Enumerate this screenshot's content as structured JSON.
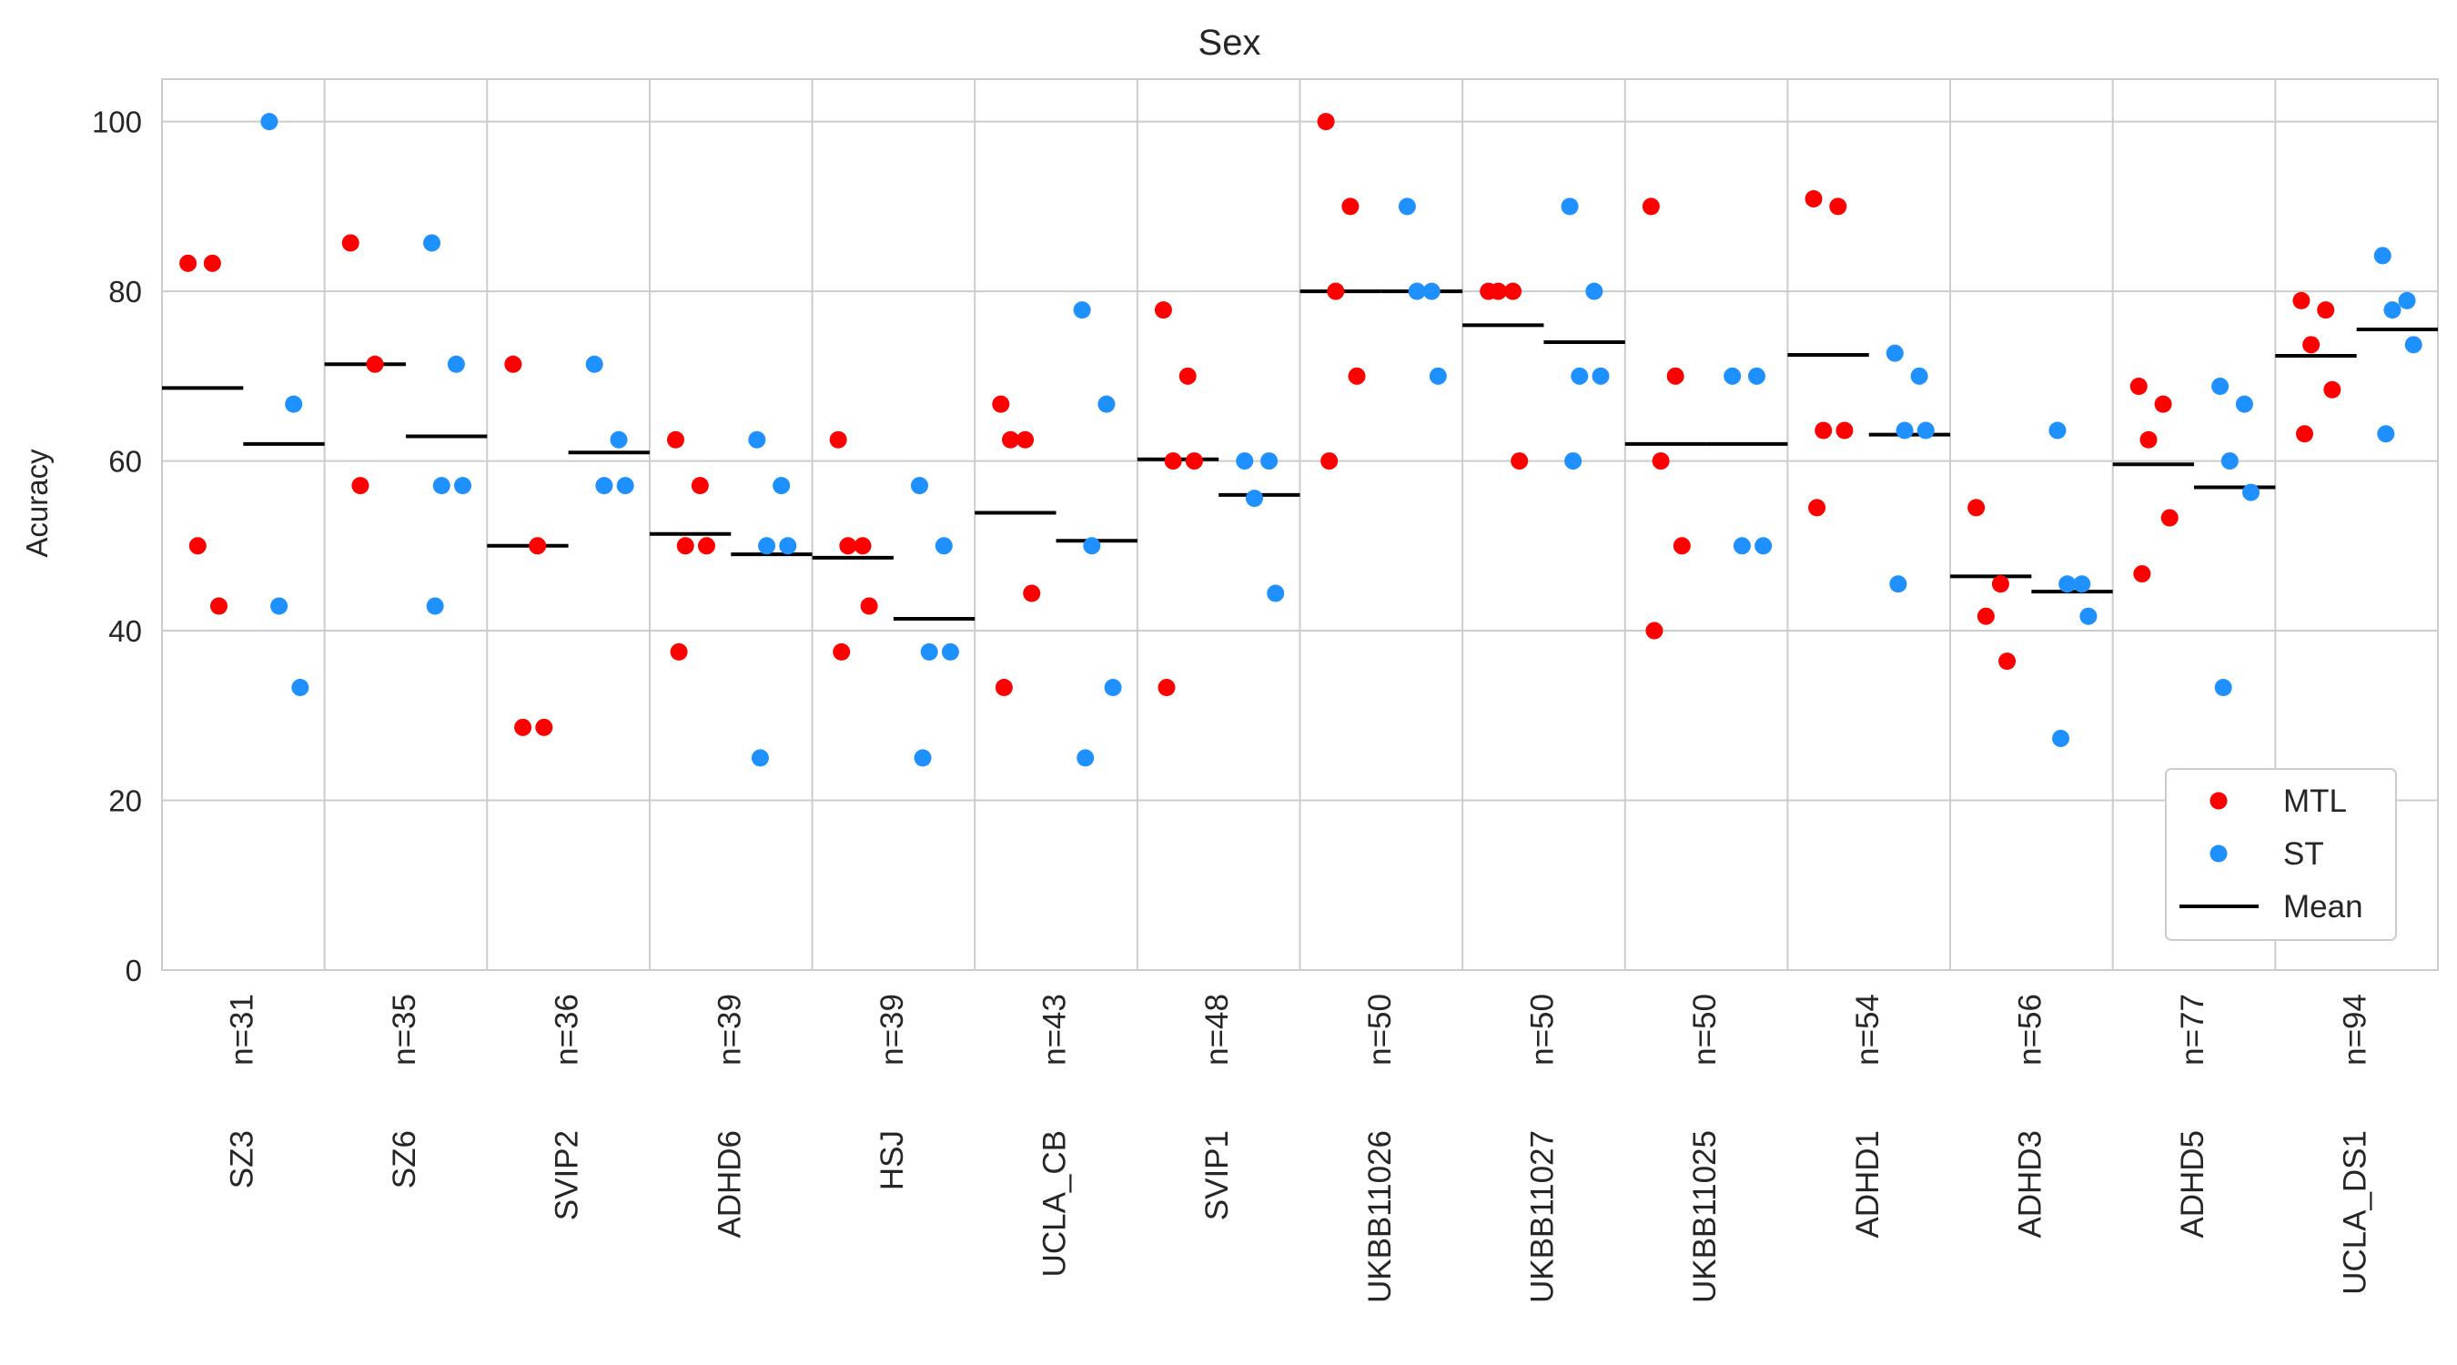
{
  "chart_data": {
    "type": "scatter",
    "title": "Sex",
    "xlabel": "",
    "ylabel": "Acuracy",
    "ylim": [
      0,
      105
    ],
    "yticks": [
      0,
      20,
      40,
      60,
      80,
      100
    ],
    "grid": true,
    "legend": {
      "position": "bottom-right",
      "entries": [
        "MTL",
        "ST",
        "Mean"
      ]
    },
    "colors": {
      "MTL": "#ff0000",
      "ST": "#1e90ff",
      "Mean": "#000000",
      "grid": "#cccccc"
    },
    "categories": [
      {
        "name": "SZ3",
        "n": "n=31",
        "MTL": [
          83.3,
          83.3,
          50.0,
          42.9
        ],
        "ST": [
          100.0,
          66.7,
          42.9,
          33.3
        ],
        "MTL_mean": 68.6,
        "ST_mean": 62.0
      },
      {
        "name": "SZ6",
        "n": "n=35",
        "MTL": [
          85.7,
          71.4,
          57.1
        ],
        "ST": [
          85.7,
          71.4,
          57.1,
          57.1,
          42.9
        ],
        "MTL_mean": 71.4,
        "ST_mean": 62.9
      },
      {
        "name": "SVIP2",
        "n": "n=36",
        "MTL": [
          71.4,
          50.0,
          28.6,
          28.6
        ],
        "ST": [
          71.4,
          62.5,
          57.1,
          57.1
        ],
        "MTL_mean": 50.0,
        "ST_mean": 61.0
      },
      {
        "name": "ADHD6",
        "n": "n=39",
        "MTL": [
          62.5,
          57.1,
          50.0,
          50.0,
          37.5
        ],
        "ST": [
          62.5,
          57.1,
          50.0,
          50.0,
          25.0
        ],
        "MTL_mean": 51.4,
        "ST_mean": 49.0
      },
      {
        "name": "HSJ",
        "n": "n=39",
        "MTL": [
          62.5,
          50.0,
          50.0,
          42.9,
          37.5
        ],
        "ST": [
          57.1,
          50.0,
          37.5,
          37.5,
          25.0
        ],
        "MTL_mean": 48.6,
        "ST_mean": 41.4
      },
      {
        "name": "UCLA_CB",
        "n": "n=43",
        "MTL": [
          66.7,
          62.5,
          62.5,
          44.4,
          33.3
        ],
        "ST": [
          77.8,
          66.7,
          50.0,
          33.3,
          25.0
        ],
        "MTL_mean": 53.9,
        "ST_mean": 50.6
      },
      {
        "name": "SVIP1",
        "n": "n=48",
        "MTL": [
          77.8,
          70.0,
          60.0,
          60.0,
          33.3
        ],
        "ST": [
          60.0,
          60.0,
          55.6,
          44.4
        ],
        "MTL_mean": 60.2,
        "ST_mean": 56.0
      },
      {
        "name": "UKBB11026",
        "n": "n=50",
        "MTL": [
          100.0,
          90.0,
          80.0,
          70.0,
          60.0
        ],
        "ST": [
          90.0,
          80.0,
          80.0,
          70.0
        ],
        "MTL_mean": 80.0,
        "ST_mean": 80.0
      },
      {
        "name": "UKBB11027",
        "n": "n=50",
        "MTL": [
          80.0,
          80.0,
          80.0,
          60.0
        ],
        "ST": [
          90.0,
          80.0,
          70.0,
          70.0,
          60.0
        ],
        "MTL_mean": 76.0,
        "ST_mean": 74.0
      },
      {
        "name": "UKBB11025",
        "n": "n=50",
        "MTL": [
          90.0,
          70.0,
          60.0,
          50.0,
          40.0
        ],
        "ST": [
          70.0,
          70.0,
          50.0,
          50.0
        ],
        "MTL_mean": 62.0,
        "ST_mean": 62.0
      },
      {
        "name": "ADHD1",
        "n": "n=54",
        "MTL": [
          90.9,
          90.0,
          63.6,
          63.6,
          54.5
        ],
        "ST": [
          72.7,
          70.0,
          63.6,
          63.6,
          45.5
        ],
        "MTL_mean": 72.5,
        "ST_mean": 63.1
      },
      {
        "name": "ADHD3",
        "n": "n=56",
        "MTL": [
          54.5,
          45.5,
          41.7,
          36.4
        ],
        "ST": [
          63.6,
          45.5,
          45.5,
          41.7,
          27.3
        ],
        "MTL_mean": 46.4,
        "ST_mean": 44.6
      },
      {
        "name": "ADHD5",
        "n": "n=77",
        "MTL": [
          68.8,
          66.7,
          62.5,
          53.3,
          46.7
        ],
        "ST": [
          68.8,
          66.7,
          60.0,
          56.3,
          33.3
        ],
        "MTL_mean": 59.6,
        "ST_mean": 56.9
      },
      {
        "name": "UCLA_DS1",
        "n": "n=94",
        "MTL": [
          78.9,
          77.8,
          73.7,
          68.4,
          63.2
        ],
        "ST": [
          84.2,
          78.9,
          77.8,
          73.7,
          63.2
        ],
        "MTL_mean": 72.4,
        "ST_mean": 75.5
      }
    ]
  }
}
